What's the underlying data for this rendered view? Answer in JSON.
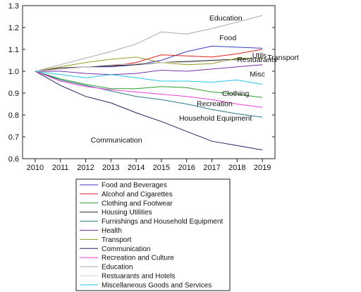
{
  "chart_data": {
    "type": "line",
    "x": [
      2010,
      2011,
      2012,
      2013,
      2014,
      2015,
      2016,
      2017,
      2018,
      2019
    ],
    "ylim": [
      0.6,
      1.3
    ],
    "yticks": [
      "0.6",
      "0.7",
      "0.8",
      "0.9",
      "1.0",
      "1.1",
      "1.2",
      "1.3"
    ],
    "xticks": [
      "2010",
      "2011",
      "2012",
      "2013",
      "2014",
      "2015",
      "2016",
      "2017",
      "2018",
      "2019"
    ],
    "grid": false,
    "legend_position": "bottom",
    "series": [
      {
        "name": "Food and Beverages",
        "color": "#3b3bcc",
        "values": [
          1.0,
          1.01,
          1.02,
          1.02,
          1.03,
          1.05,
          1.09,
          1.115,
          1.11,
          1.105
        ]
      },
      {
        "name": "Alcohol and Cigarettes",
        "color": "#e8211d",
        "values": [
          1.0,
          1.01,
          1.02,
          1.025,
          1.04,
          1.075,
          1.07,
          1.065,
          1.08,
          1.1
        ]
      },
      {
        "name": "Clothing and Footwear",
        "color": "#2e9e2e",
        "values": [
          1.0,
          0.965,
          0.94,
          0.92,
          0.92,
          0.93,
          0.925,
          0.905,
          0.895,
          0.88
        ]
      },
      {
        "name": "Housing Utilities",
        "color": "#222222",
        "values": [
          1.0,
          1.015,
          1.02,
          1.025,
          1.03,
          1.04,
          1.045,
          1.05,
          1.055,
          1.06
        ]
      },
      {
        "name": "Furnishings and Household Equipment",
        "color": "#2a7a8c",
        "values": [
          1.0,
          0.96,
          0.935,
          0.91,
          0.885,
          0.87,
          0.85,
          0.825,
          0.805,
          0.79
        ]
      },
      {
        "name": "Health",
        "color": "#7b2fa8",
        "values": [
          1.0,
          1.0,
          0.99,
          0.985,
          0.99,
          1.005,
          1.0,
          1.01,
          1.02,
          1.03
        ]
      },
      {
        "name": "Transport",
        "color": "#9a9a22",
        "values": [
          1.0,
          1.02,
          1.04,
          1.055,
          1.065,
          1.04,
          1.03,
          1.035,
          1.06,
          1.06
        ]
      },
      {
        "name": "Communication",
        "color": "#222266",
        "values": [
          1.0,
          0.935,
          0.885,
          0.855,
          0.81,
          0.77,
          0.725,
          0.68,
          0.66,
          0.64
        ]
      },
      {
        "name": "Recreation and Culture",
        "color": "#ee3fd8",
        "values": [
          1.0,
          0.955,
          0.93,
          0.915,
          0.905,
          0.895,
          0.885,
          0.87,
          0.85,
          0.835
        ]
      },
      {
        "name": "Education",
        "color": "#a8a8a8",
        "values": [
          1.0,
          1.03,
          1.06,
          1.09,
          1.125,
          1.18,
          1.17,
          1.195,
          1.225,
          1.255
        ]
      },
      {
        "name": "Restuarants and Hotels",
        "color": "#d6d6d6",
        "values": [
          1.0,
          1.01,
          1.02,
          1.03,
          1.035,
          1.04,
          1.04,
          1.045,
          1.05,
          1.065
        ]
      },
      {
        "name": "Miscellaneous Goods and Services",
        "color": "#23c8e8",
        "values": [
          1.0,
          0.985,
          0.97,
          0.985,
          0.97,
          0.955,
          0.955,
          0.95,
          0.96,
          0.94
        ]
      }
    ],
    "annotations": [
      {
        "text": "Education",
        "x": 2016.9,
        "y": 1.245
      },
      {
        "text": "Food",
        "x": 2017.3,
        "y": 1.155
      },
      {
        "text": "Utils",
        "x": 2018.6,
        "y": 1.075
      },
      {
        "text": "Transport",
        "x": 2019.2,
        "y": 1.065
      },
      {
        "text": "Restuarants",
        "x": 2018.0,
        "y": 1.055
      },
      {
        "text": "Misc",
        "x": 2018.5,
        "y": 0.988
      },
      {
        "text": "Clothing",
        "x": 2017.4,
        "y": 0.9
      },
      {
        "text": "Recreation",
        "x": 2016.4,
        "y": 0.853
      },
      {
        "text": "Household Equipment",
        "x": 2015.7,
        "y": 0.787
      },
      {
        "text": "Communication",
        "x": 2012.2,
        "y": 0.687
      }
    ]
  }
}
